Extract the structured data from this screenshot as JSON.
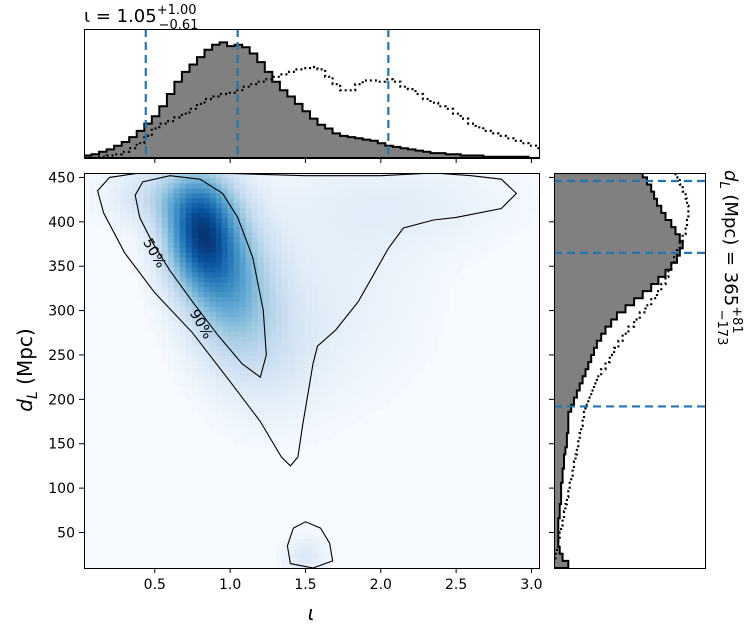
{
  "chart_data": {
    "type": "heatmap",
    "title_top": {
      "symbol": "ι = 1.05",
      "sup": "+1.00",
      "sub": "−0.61"
    },
    "title_right": {
      "symbol": "d",
      "sub_symbol": "L",
      "rest": " (Mpc) = 365",
      "sup": "+81",
      "sub": "−173"
    },
    "xlabel": "ι",
    "ylabel": {
      "symbol": "d",
      "sub_symbol": "L",
      "rest": " (Mpc)"
    },
    "xlim": [
      0.03,
      3.05
    ],
    "ylim": [
      10,
      455
    ],
    "xticks": [
      0.5,
      1.0,
      1.5,
      2.0,
      2.5,
      3.0
    ],
    "xtick_labels": [
      "0.5",
      "1.0",
      "1.5",
      "2.0",
      "2.5",
      "3.0"
    ],
    "yticks": [
      50,
      100,
      150,
      200,
      250,
      300,
      350,
      400,
      450
    ],
    "ytick_labels": [
      "50",
      "100",
      "150",
      "200",
      "250",
      "300",
      "350",
      "400",
      "450"
    ],
    "colormap": "Blues",
    "density_blobs": [
      {
        "x": 0.8,
        "y": 390,
        "sx": 0.17,
        "sy": 45,
        "w": 1.0
      },
      {
        "x": 1.0,
        "y": 330,
        "sx": 0.2,
        "sy": 55,
        "w": 0.55
      },
      {
        "x": 1.25,
        "y": 260,
        "sx": 0.25,
        "sy": 55,
        "w": 0.18
      },
      {
        "x": 0.55,
        "y": 430,
        "sx": 0.25,
        "sy": 25,
        "w": 0.25
      },
      {
        "x": 1.7,
        "y": 330,
        "sx": 0.45,
        "sy": 90,
        "w": 0.1
      },
      {
        "x": 2.2,
        "y": 420,
        "sx": 0.5,
        "sy": 35,
        "w": 0.1
      },
      {
        "x": 1.5,
        "y": 25,
        "sx": 0.1,
        "sy": 14,
        "w": 0.18
      }
    ],
    "contours": [
      {
        "label": "50%",
        "points": [
          [
            0.37,
            430
          ],
          [
            0.42,
            445
          ],
          [
            0.6,
            452
          ],
          [
            0.8,
            448
          ],
          [
            0.95,
            432
          ],
          [
            1.05,
            405
          ],
          [
            1.15,
            360
          ],
          [
            1.22,
            300
          ],
          [
            1.24,
            250
          ],
          [
            1.2,
            225
          ],
          [
            1.08,
            240
          ],
          [
            0.92,
            272
          ],
          [
            0.75,
            310
          ],
          [
            0.6,
            345
          ],
          [
            0.48,
            378
          ],
          [
            0.4,
            405
          ],
          [
            0.37,
            430
          ]
        ],
        "label_at": [
          0.5,
          365
        ]
      },
      {
        "label": "90%",
        "points": [
          [
            0.12,
            435
          ],
          [
            0.2,
            450
          ],
          [
            0.4,
            455
          ],
          [
            0.9,
            455
          ],
          [
            1.5,
            452
          ],
          [
            2.0,
            452
          ],
          [
            2.35,
            455
          ],
          [
            2.6,
            452
          ],
          [
            2.8,
            448
          ],
          [
            2.9,
            432
          ],
          [
            2.8,
            415
          ],
          [
            2.5,
            405
          ],
          [
            2.35,
            402
          ],
          [
            2.15,
            393
          ],
          [
            2.05,
            370
          ],
          [
            1.95,
            340
          ],
          [
            1.85,
            310
          ],
          [
            1.7,
            278
          ],
          [
            1.58,
            260
          ],
          [
            1.55,
            240
          ],
          [
            1.52,
            210
          ],
          [
            1.48,
            170
          ],
          [
            1.45,
            135
          ],
          [
            1.4,
            125
          ],
          [
            1.34,
            135
          ],
          [
            1.2,
            175
          ],
          [
            1.0,
            220
          ],
          [
            0.75,
            275
          ],
          [
            0.5,
            320
          ],
          [
            0.3,
            365
          ],
          [
            0.16,
            410
          ],
          [
            0.12,
            435
          ]
        ],
        "label_at": [
          0.81,
          285
        ]
      },
      {
        "label": "",
        "points": [
          [
            1.42,
            55
          ],
          [
            1.5,
            62
          ],
          [
            1.6,
            55
          ],
          [
            1.66,
            38
          ],
          [
            1.68,
            18
          ],
          [
            1.55,
            10
          ],
          [
            1.4,
            15
          ],
          [
            1.38,
            35
          ],
          [
            1.42,
            55
          ]
        ],
        "label_at": null
      }
    ],
    "top_hist": {
      "bin_edges_start": 0.03,
      "bin_width": 0.05,
      "solid": [
        0.02,
        0.03,
        0.05,
        0.07,
        0.1,
        0.13,
        0.17,
        0.22,
        0.28,
        0.34,
        0.42,
        0.52,
        0.62,
        0.7,
        0.76,
        0.82,
        0.88,
        0.92,
        0.94,
        0.91,
        0.92,
        0.9,
        0.85,
        0.78,
        0.7,
        0.62,
        0.55,
        0.5,
        0.44,
        0.38,
        0.32,
        0.27,
        0.24,
        0.2,
        0.18,
        0.17,
        0.16,
        0.15,
        0.14,
        0.12,
        0.1,
        0.09,
        0.08,
        0.07,
        0.06,
        0.05,
        0.04,
        0.04,
        0.03,
        0.03,
        0.02,
        0.02,
        0.02,
        0.01,
        0.01,
        0.01,
        0.01,
        0.01,
        0.01,
        0.0,
        0.0
      ],
      "dotted": [
        0.0,
        0.0,
        0.01,
        0.02,
        0.03,
        0.05,
        0.08,
        0.12,
        0.18,
        0.24,
        0.28,
        0.3,
        0.33,
        0.36,
        0.4,
        0.44,
        0.48,
        0.5,
        0.52,
        0.53,
        0.55,
        0.58,
        0.6,
        0.62,
        0.64,
        0.66,
        0.68,
        0.7,
        0.72,
        0.73,
        0.74,
        0.72,
        0.66,
        0.6,
        0.55,
        0.55,
        0.6,
        0.63,
        0.63,
        0.62,
        0.64,
        0.62,
        0.58,
        0.56,
        0.52,
        0.48,
        0.45,
        0.42,
        0.4,
        0.36,
        0.32,
        0.28,
        0.25,
        0.22,
        0.2,
        0.18,
        0.16,
        0.14,
        0.12,
        0.1,
        0.08
      ],
      "ymax": 1.0,
      "quantiles": [
        0.44,
        1.05,
        2.05
      ]
    },
    "right_hist": {
      "bin_edges_start": 10,
      "bin_width": 8,
      "solid": [
        0.1,
        0.06,
        0.04,
        0.03,
        0.03,
        0.03,
        0.03,
        0.04,
        0.04,
        0.05,
        0.05,
        0.05,
        0.06,
        0.06,
        0.07,
        0.07,
        0.08,
        0.09,
        0.09,
        0.1,
        0.1,
        0.1,
        0.12,
        0.14,
        0.16,
        0.18,
        0.2,
        0.22,
        0.24,
        0.26,
        0.28,
        0.3,
        0.33,
        0.36,
        0.4,
        0.44,
        0.5,
        0.56,
        0.62,
        0.68,
        0.73,
        0.78,
        0.82,
        0.86,
        0.88,
        0.9,
        0.88,
        0.85,
        0.82,
        0.78,
        0.75,
        0.72,
        0.7,
        0.68,
        0.65,
        0.62
      ],
      "dotted": [
        0.0,
        0.01,
        0.02,
        0.03,
        0.04,
        0.05,
        0.06,
        0.07,
        0.08,
        0.09,
        0.1,
        0.11,
        0.12,
        0.13,
        0.14,
        0.15,
        0.16,
        0.17,
        0.18,
        0.19,
        0.2,
        0.21,
        0.22,
        0.24,
        0.26,
        0.28,
        0.3,
        0.33,
        0.36,
        0.39,
        0.42,
        0.45,
        0.48,
        0.52,
        0.56,
        0.6,
        0.64,
        0.68,
        0.72,
        0.75,
        0.78,
        0.8,
        0.82,
        0.84,
        0.86,
        0.88,
        0.9,
        0.92,
        0.93,
        0.94,
        0.94,
        0.93,
        0.92,
        0.9,
        0.88,
        0.85
      ],
      "xmax": 1.0,
      "quantiles": [
        192,
        365,
        446
      ]
    },
    "grid": false,
    "legend": "none"
  }
}
